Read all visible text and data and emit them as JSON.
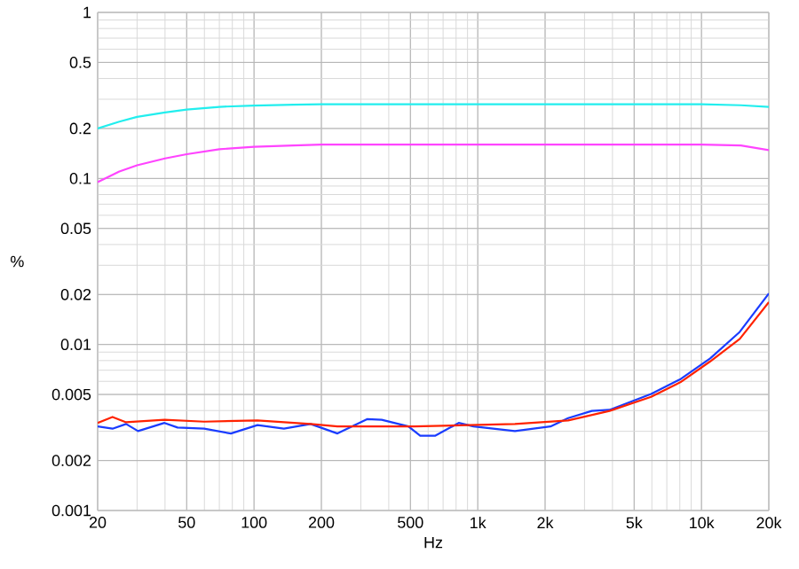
{
  "chart_data": {
    "type": "line",
    "xlabel": "Hz",
    "ylabel": "%",
    "log": "xy",
    "grid": true,
    "marker": "none",
    "line_style": "solid",
    "xlim": [
      20,
      20000
    ],
    "ylim": [
      0.001,
      1
    ],
    "xticks": [
      20,
      50,
      100,
      200,
      500,
      {
        "value": 1000,
        "label": "1k"
      },
      {
        "value": 2000,
        "label": "2k"
      },
      {
        "value": 5000,
        "label": "5k"
      },
      {
        "value": 10000,
        "label": "10k"
      },
      {
        "value": 20000,
        "label": "20k"
      }
    ],
    "yticks": [
      0.001,
      0.002,
      0.005,
      0.01,
      0.02,
      0.05,
      0.1,
      0.2,
      0.5,
      1
    ],
    "series": [
      {
        "color": "#22eeee",
        "x": [
          20,
          25,
          30,
          40,
          50,
          70,
          100,
          150,
          200,
          500,
          1000,
          2000,
          5000,
          10000,
          15000,
          20000
        ],
        "values": [
          0.2,
          0.22,
          0.235,
          0.25,
          0.26,
          0.27,
          0.275,
          0.278,
          0.28,
          0.28,
          0.28,
          0.28,
          0.28,
          0.28,
          0.276,
          0.27
        ]
      },
      {
        "color": "#ff44ff",
        "x": [
          20,
          25,
          30,
          40,
          50,
          70,
          100,
          150,
          200,
          500,
          1000,
          2000,
          5000,
          10000,
          15000,
          20000
        ],
        "values": [
          0.095,
          0.11,
          0.12,
          0.132,
          0.14,
          0.15,
          0.155,
          0.158,
          0.16,
          0.16,
          0.16,
          0.16,
          0.16,
          0.16,
          0.158,
          0.148
        ]
      },
      {
        "color": "#1a3cff",
        "x": [
          20,
          23.3,
          26.8,
          30.3,
          39.8,
          45.5,
          59.9,
          78.8,
          103.6,
          136,
          179,
          236,
          320,
          372,
          490,
          553,
          644,
          822,
          957,
          1466,
          2113,
          2536,
          3237,
          3882,
          5955,
          8070,
          10940,
          14830,
          20000
        ],
        "values": [
          0.00321,
          0.00311,
          0.00332,
          0.00301,
          0.00337,
          0.00316,
          0.00311,
          0.00291,
          0.00327,
          0.00311,
          0.00332,
          0.00291,
          0.00355,
          0.00352,
          0.00321,
          0.00282,
          0.00282,
          0.00337,
          0.00321,
          0.00301,
          0.00321,
          0.0036,
          0.00398,
          0.00404,
          0.00504,
          0.00619,
          0.00824,
          0.01191,
          0.0203
        ]
      },
      {
        "color": "#ff2200",
        "x": [
          20,
          23.3,
          26.8,
          39.8,
          59.9,
          103.6,
          179,
          236,
          520,
          1466,
          2536,
          3882,
          5955,
          8070,
          10940,
          14830,
          20000
        ],
        "values": [
          0.00337,
          0.00366,
          0.0034,
          0.00352,
          0.00343,
          0.00349,
          0.00332,
          0.00321,
          0.00321,
          0.00332,
          0.00349,
          0.00398,
          0.00484,
          0.00594,
          0.00791,
          0.01081,
          0.018
        ]
      }
    ]
  }
}
